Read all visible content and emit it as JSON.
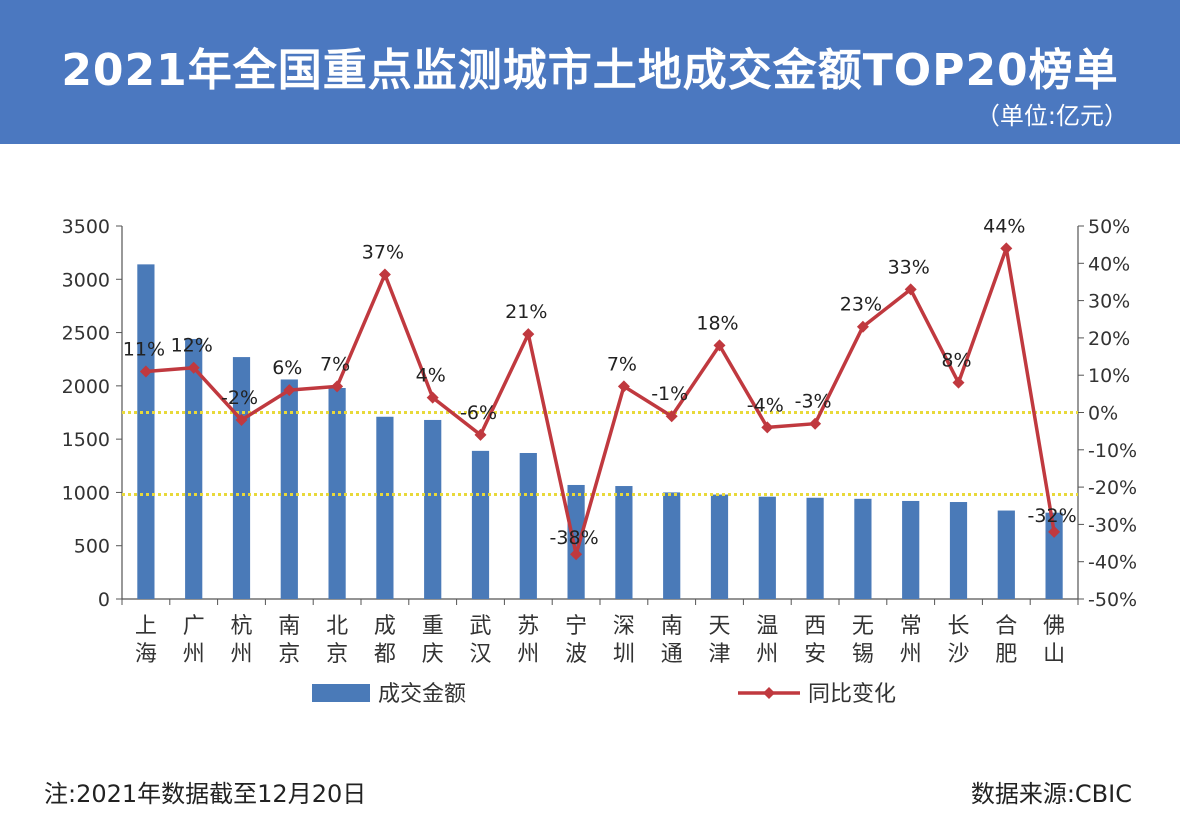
{
  "header": {
    "title": "2021年全国重点监测城市土地成交金额TOP20榜单",
    "unit": "（单位:亿元）"
  },
  "footer": {
    "note": "注:2021年数据截至12月20日",
    "source": "数据来源:CBIC"
  },
  "colors": {
    "banner": "#4b78c0",
    "bar": "#4a7ab8",
    "line": "#c0393f",
    "reference_line": "#e8d93a"
  },
  "chart_data": {
    "type": "bar",
    "categories": [
      "上海",
      "广州",
      "杭州",
      "南京",
      "北京",
      "成都",
      "重庆",
      "武汉",
      "苏州",
      "宁波",
      "深圳",
      "南通",
      "天津",
      "温州",
      "西安",
      "无锡",
      "常州",
      "长沙",
      "合肥",
      "佛山"
    ],
    "series": [
      {
        "name": "成交金额",
        "type": "bar",
        "axis": "left",
        "values": [
          3140,
          2440,
          2270,
          2060,
          1980,
          1710,
          1680,
          1390,
          1370,
          1070,
          1060,
          1000,
          980,
          960,
          950,
          940,
          920,
          910,
          830,
          810
        ]
      },
      {
        "name": "同比变化",
        "type": "line",
        "axis": "right",
        "values": [
          11,
          12,
          -2,
          6,
          7,
          37,
          4,
          -6,
          21,
          -38,
          7,
          -1,
          18,
          -4,
          -3,
          23,
          33,
          8,
          44,
          -32
        ],
        "labels": [
          "11%",
          "12%",
          "-2%",
          "6%",
          "7%",
          "37%",
          "4%",
          "-6%",
          "21%",
          "-38%",
          "7%",
          "-1%",
          "18%",
          "-4%",
          "-3%",
          "23%",
          "33%",
          "8%",
          "44%",
          "-32%"
        ]
      }
    ],
    "left_axis": {
      "ylim": [
        0,
        3500
      ],
      "ticks": [
        0,
        500,
        1000,
        1500,
        2000,
        2500,
        3000,
        3500
      ]
    },
    "right_axis": {
      "ylim": [
        -50,
        50
      ],
      "ticks": [
        -50,
        -40,
        -30,
        -20,
        -10,
        0,
        10,
        20,
        30,
        40,
        50
      ],
      "tick_labels": [
        "-50%",
        "-40%",
        "-30%",
        "-20%",
        "-10%",
        "0%",
        "10%",
        "20%",
        "30%",
        "40%",
        "50%"
      ]
    },
    "reference_lines": [
      {
        "axis": "right",
        "value": 0
      },
      {
        "axis": "left",
        "value": 980
      }
    ],
    "grid": false,
    "legend": "bottom"
  }
}
